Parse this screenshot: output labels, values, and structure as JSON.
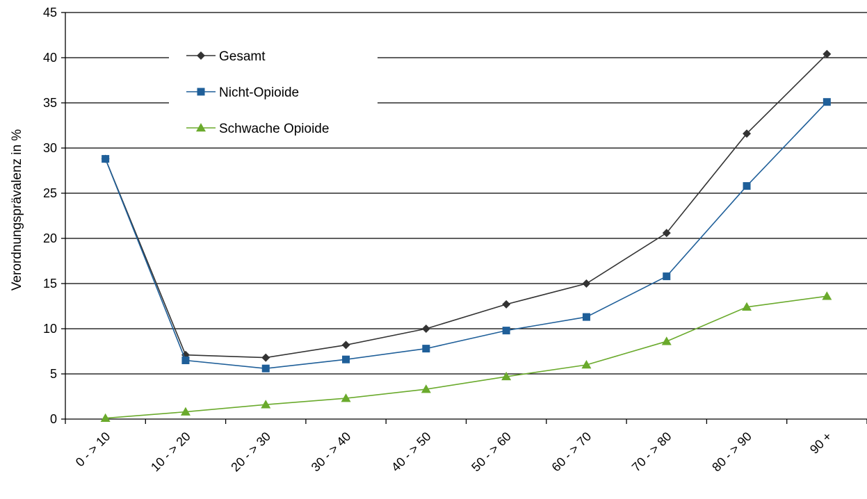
{
  "chart_data": {
    "type": "line",
    "ylabel": "Verordnungsprävalenz in %",
    "xlabel": "",
    "ylim": [
      0,
      45
    ],
    "yticks": [
      0,
      5,
      10,
      15,
      20,
      25,
      30,
      35,
      40,
      45
    ],
    "grid": true,
    "legend_position": "top-left",
    "categories": [
      "0 - > 10",
      "10 - > 20",
      "20 - > 30",
      "30 - > 40",
      "40 - > 50",
      "50 - > 60",
      "60 - > 70",
      "70 - > 80",
      "80 - > 90",
      "90 +"
    ],
    "series": [
      {
        "name": "Gesamt",
        "color": "#333333",
        "marker": "diamond",
        "values": [
          28.8,
          7.1,
          6.8,
          8.2,
          10.0,
          12.7,
          15.0,
          20.6,
          31.6,
          40.4
        ]
      },
      {
        "name": "Nicht-Opioide",
        "color": "#1f5f99",
        "marker": "square",
        "values": [
          28.8,
          6.5,
          5.6,
          6.6,
          7.8,
          9.8,
          11.3,
          15.8,
          25.8,
          35.1
        ]
      },
      {
        "name": "Schwache Opioide",
        "color": "#6aaa2c",
        "marker": "triangle",
        "values": [
          0.1,
          0.8,
          1.6,
          2.3,
          3.3,
          4.7,
          6.0,
          8.6,
          12.4,
          13.6
        ]
      }
    ]
  }
}
